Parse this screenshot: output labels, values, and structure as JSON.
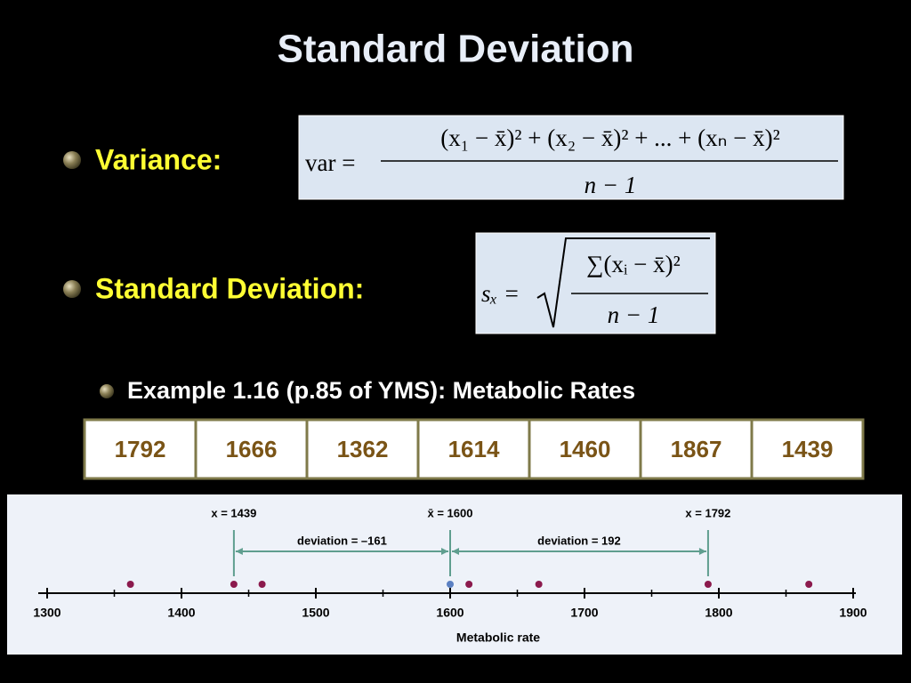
{
  "title": "Standard Deviation",
  "bullets": [
    {
      "label": "Variance:",
      "formula": {
        "lhs": "var =",
        "numerator": "(x₁ − x̄)² + (x₂ − x̄)² + ... + (xₙ − x̄)²",
        "denominator": "n − 1"
      }
    },
    {
      "label": "Standard Deviation:",
      "formula": {
        "lhs": "sₓ =",
        "numerator": "∑(xᵢ − x̄)²",
        "denominator": "n − 1"
      }
    }
  ],
  "sub_bullet": "Example 1.16 (p.85 of YMS):  Metabolic Rates",
  "table": {
    "values": [
      1792,
      1666,
      1362,
      1614,
      1460,
      1867,
      1439
    ]
  },
  "dotplot": {
    "xlim": [
      1300,
      1900
    ],
    "xticks": [
      1300,
      1400,
      1500,
      1600,
      1700,
      1800,
      1900
    ],
    "xlabel": "Metabolic rate",
    "mean": 1600,
    "markers": [
      {
        "label": "x = 1439",
        "value": 1439
      },
      {
        "label": "x̄ = 1600",
        "value": 1600
      },
      {
        "label": "x = 1792",
        "value": 1792
      }
    ],
    "deviation_labels": [
      "deviation = –161",
      "deviation = 192"
    ]
  }
}
